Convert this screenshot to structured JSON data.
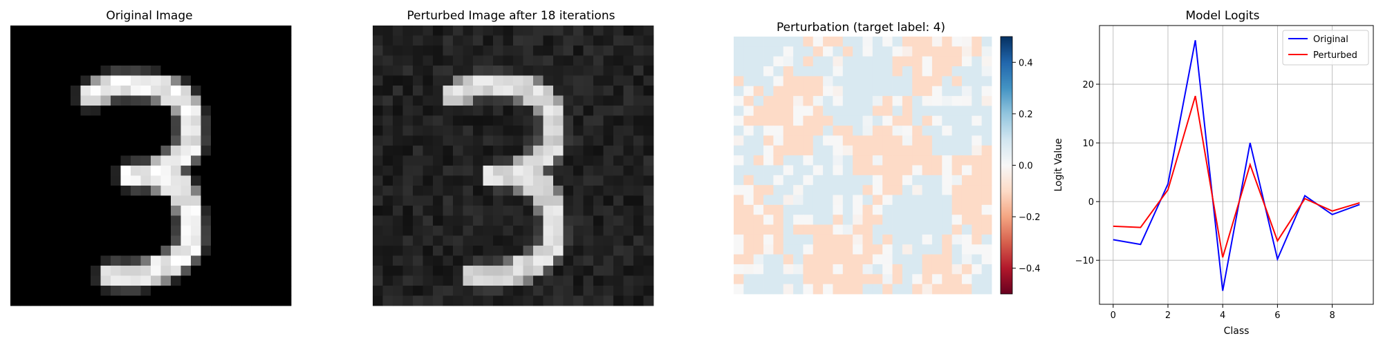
{
  "chart_data": [
    {
      "type": "heatmap",
      "title": "Original Image",
      "colormap": "gray",
      "grid_size": [
        28,
        28
      ],
      "strokes": [
        [
          [
            8,
            7
          ],
          [
            10,
            6
          ],
          [
            14,
            6
          ],
          [
            17,
            7
          ],
          [
            18,
            9
          ],
          [
            18,
            12
          ],
          [
            16,
            14
          ],
          [
            14,
            15
          ],
          [
            12,
            15
          ]
        ],
        [
          [
            14,
            15
          ],
          [
            17,
            16
          ],
          [
            18,
            19
          ],
          [
            18,
            22
          ],
          [
            16,
            24
          ],
          [
            13,
            25
          ],
          [
            10,
            25
          ]
        ]
      ]
    },
    {
      "type": "heatmap",
      "title": "Perturbed Image after 18 iterations",
      "colormap": "gray",
      "grid_size": [
        28,
        28
      ],
      "noise_level": 0.13
    },
    {
      "type": "heatmap",
      "title": "Perturbation (target label: 4)",
      "colormap": "RdBu",
      "grid_size": [
        26,
        26
      ],
      "levels": [
        -0.1,
        0.08
      ],
      "colorbar": {
        "range": [
          -0.5,
          0.5
        ],
        "ticks": [
          "0.4",
          "0.2",
          "0.0",
          "−0.2",
          "−0.4"
        ],
        "tick_values": [
          0.4,
          0.2,
          0.0,
          -0.2,
          -0.4
        ]
      }
    },
    {
      "type": "line",
      "title": "Model Logits",
      "xlabel": "Class",
      "ylabel": "Logit Value",
      "x": [
        0,
        1,
        2,
        3,
        4,
        5,
        6,
        7,
        8,
        9
      ],
      "xlim": [
        -0.5,
        9.5
      ],
      "ylim": [
        -17.5,
        30
      ],
      "xticks": [
        "0",
        "2",
        "4",
        "6",
        "8"
      ],
      "xtick_values": [
        0,
        2,
        4,
        6,
        8
      ],
      "yticks": [
        "20",
        "10",
        "0",
        "−10"
      ],
      "ytick_values": [
        20,
        10,
        0,
        -10
      ],
      "grid": true,
      "legend": "top-right",
      "series": [
        {
          "name": "Original",
          "color": "#0000ff",
          "values": [
            -6.5,
            -7.3,
            3.0,
            27.5,
            -15.2,
            10.0,
            -9.8,
            1.0,
            -2.2,
            -0.5
          ]
        },
        {
          "name": "Perturbed",
          "color": "#ff0000",
          "values": [
            -4.2,
            -4.4,
            2.0,
            18.0,
            -9.5,
            6.3,
            -6.7,
            0.5,
            -1.6,
            -0.2
          ]
        }
      ]
    }
  ]
}
